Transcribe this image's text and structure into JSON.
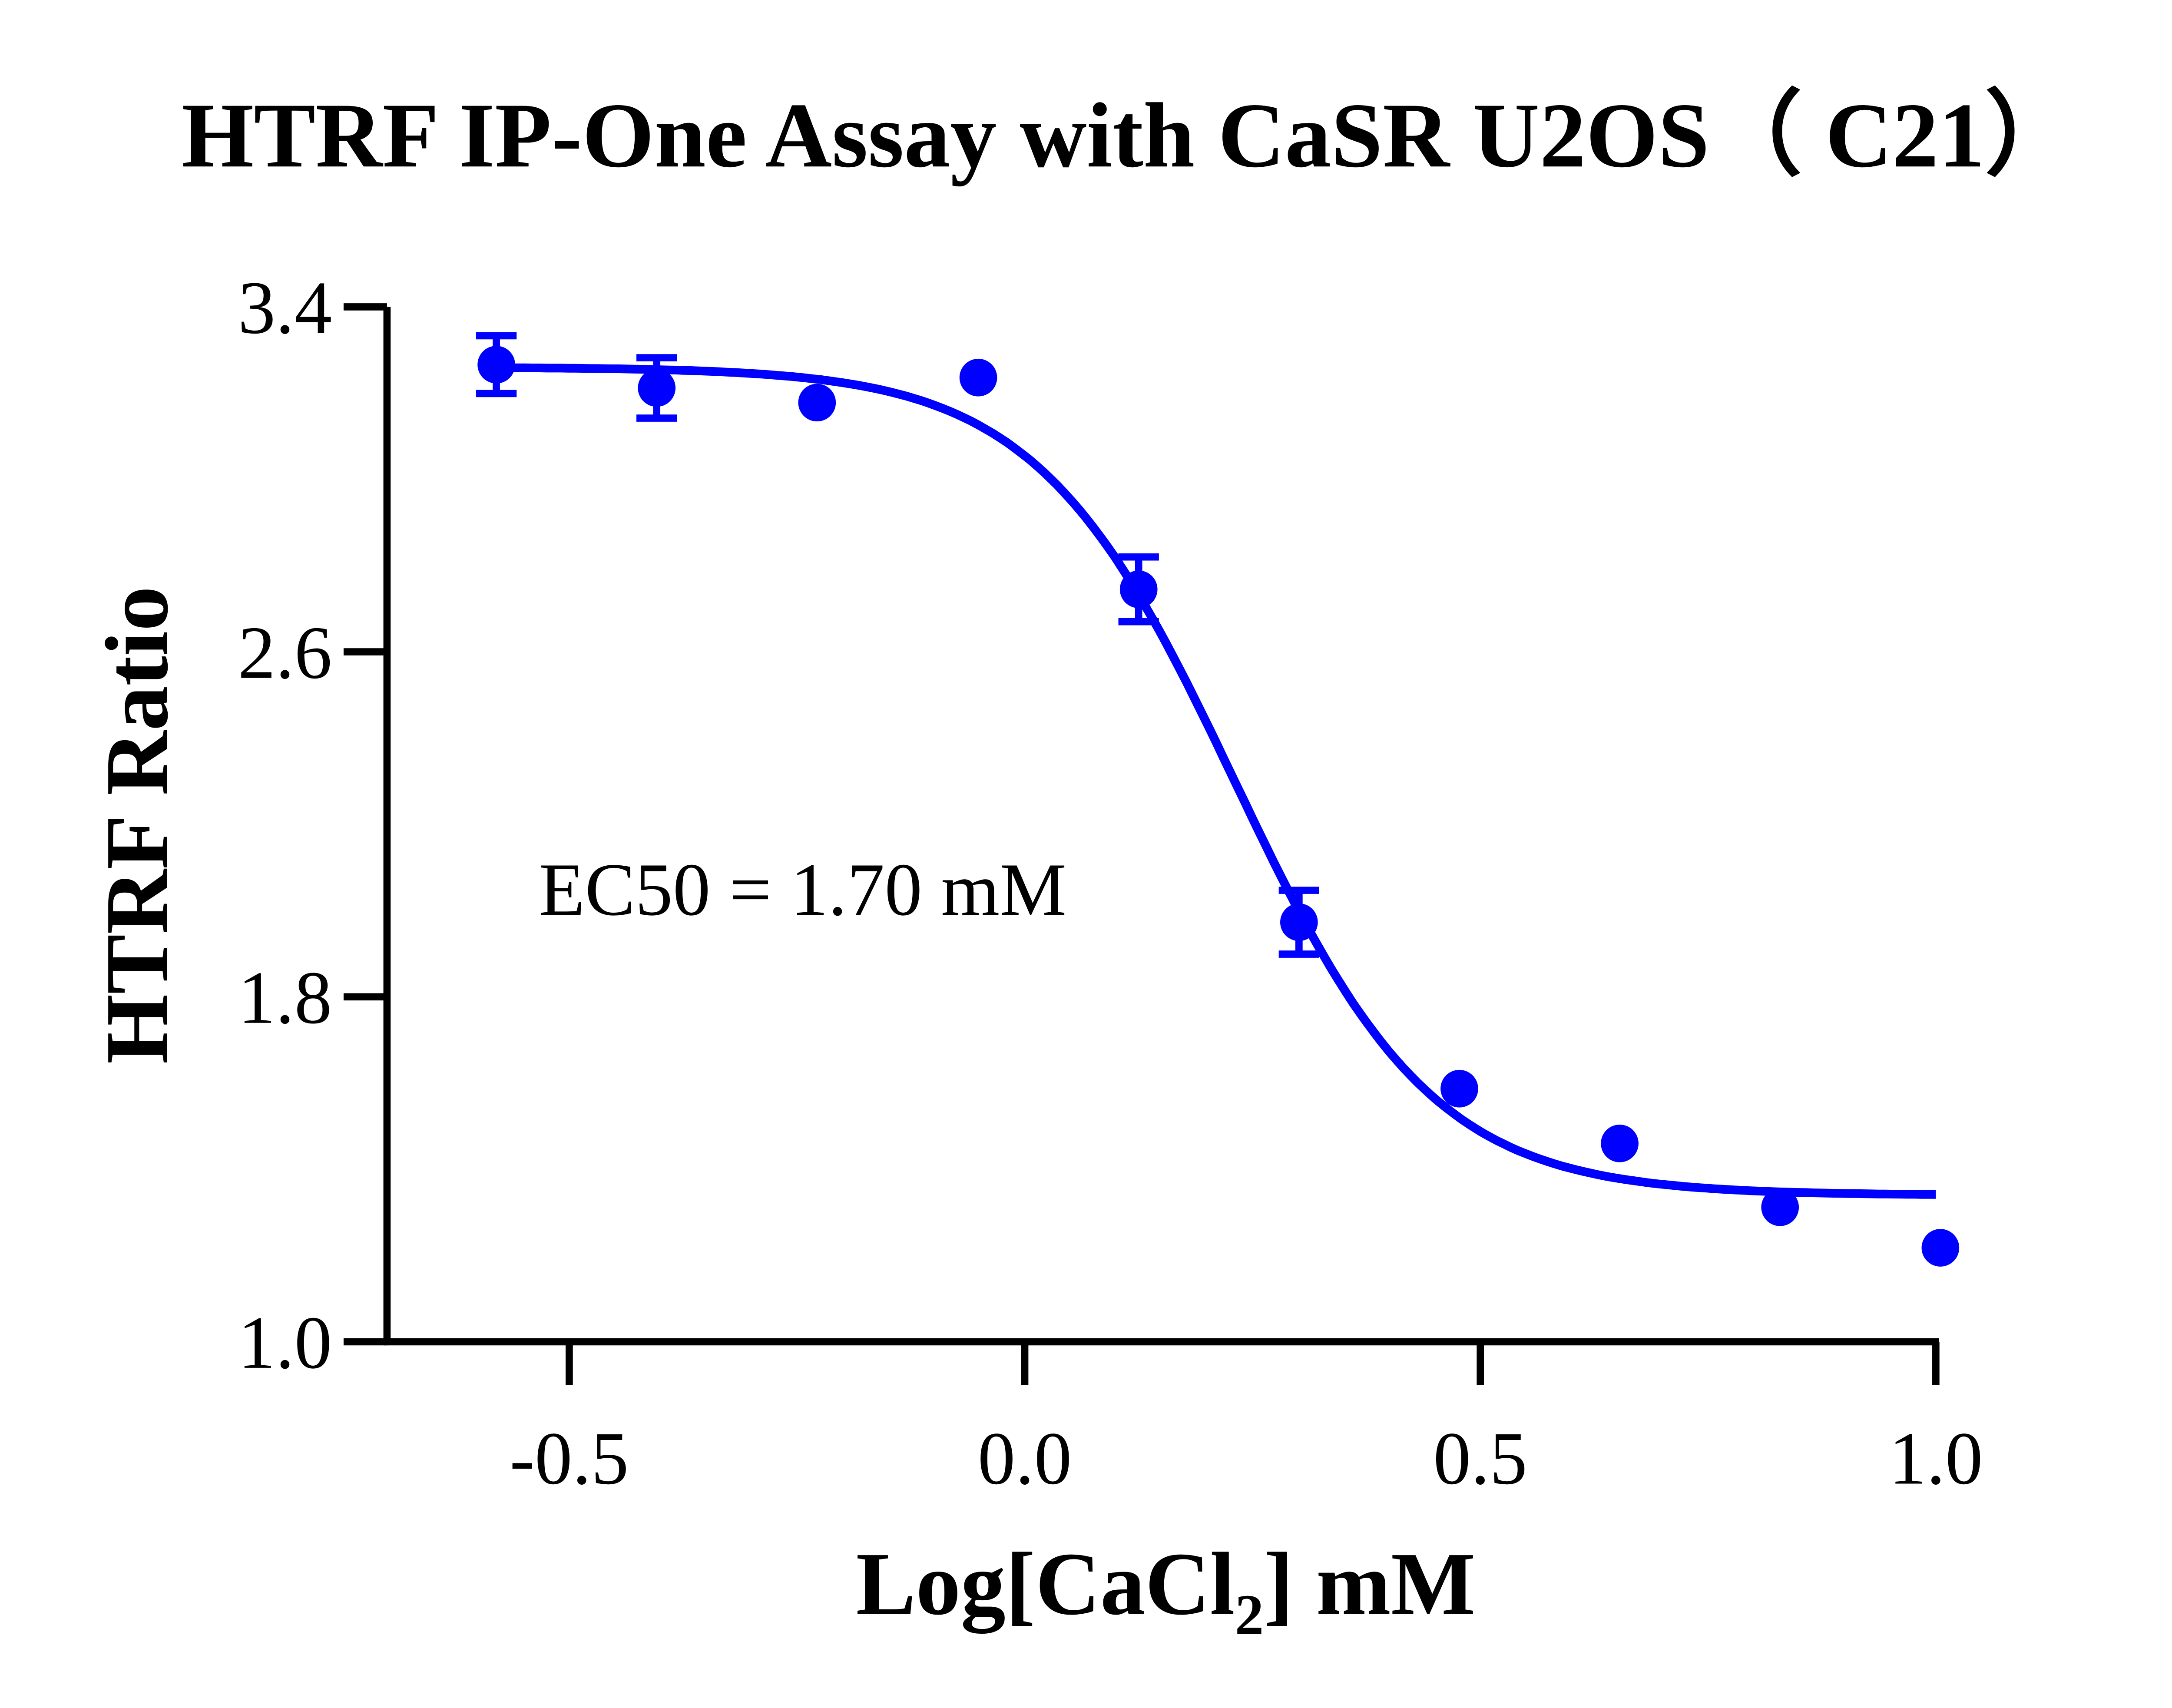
{
  "chart_data": {
    "type": "scatter",
    "title": "HTRF IP-One Assay with CaSR U2OS（ C21）",
    "xlabel": "Log[CaCl2] mM",
    "xlabel_main": "Log[CaCl",
    "xlabel_sub": "2",
    "xlabel_tail": "] mM",
    "ylabel": "HTRF Ratio",
    "xlim": [
      -0.7,
      1.0
    ],
    "ylim": [
      1.0,
      3.4
    ],
    "xticks": [
      -0.5,
      0.0,
      0.5,
      1.0
    ],
    "xtick_labels": [
      "-0.5",
      "0.0",
      "0.5",
      "1.0"
    ],
    "yticks": [
      1.0,
      1.8,
      2.6,
      3.4
    ],
    "ytick_labels": [
      "1.0",
      "1.8",
      "2.6",
      "3.4"
    ],
    "grid": false,
    "color": "#0000FF",
    "annotation": "EC50 = 1.70 mM",
    "points": [
      {
        "x": -0.58,
        "y": 3.266,
        "err": 0.067
      },
      {
        "x": -0.404,
        "y": 3.212,
        "err": 0.07
      },
      {
        "x": -0.228,
        "y": 3.178,
        "err": 0
      },
      {
        "x": -0.051,
        "y": 3.236,
        "err": 0
      },
      {
        "x": 0.125,
        "y": 2.745,
        "err": 0.075
      },
      {
        "x": 0.301,
        "y": 1.973,
        "err": 0.074
      },
      {
        "x": 0.477,
        "y": 1.587,
        "err": 0
      },
      {
        "x": 0.653,
        "y": 1.46,
        "err": 0
      },
      {
        "x": 0.829,
        "y": 1.312,
        "err": 0
      },
      {
        "x": 1.005,
        "y": 1.218,
        "err": 0
      }
    ]
  }
}
